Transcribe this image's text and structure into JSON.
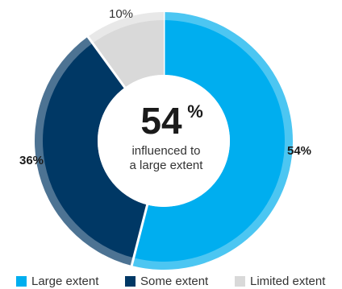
{
  "chart_data": {
    "type": "pie",
    "variant": "donut",
    "categories": [
      "Large extent",
      "Some extent",
      "Limited extent"
    ],
    "values": [
      54,
      36,
      10
    ],
    "labels": [
      "54%",
      "36%",
      "10%"
    ],
    "colors": [
      "#00aeef",
      "#003865",
      "#d9d9d9"
    ],
    "outer_colors": [
      "#4cc6f2",
      "#4d7393",
      "#e8e8e8"
    ],
    "center_value": "54",
    "center_unit": "%",
    "center_text_line1": "influenced to",
    "center_text_line2": "a large extent",
    "legend_position": "bottom"
  }
}
